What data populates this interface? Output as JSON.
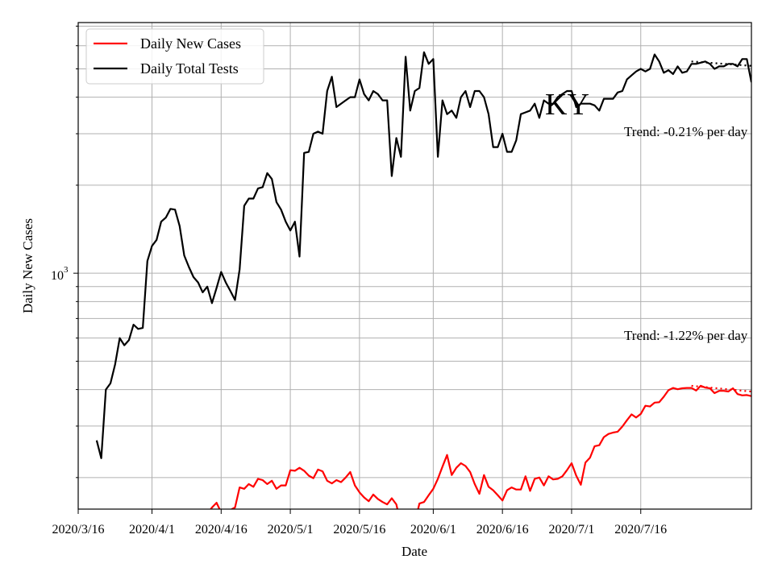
{
  "chart_data": {
    "type": "line",
    "title": "",
    "annotation_state": "KY",
    "xlabel": "Date",
    "ylabel": "Daily New Cases",
    "x_ticks": [
      {
        "date": "2020-03-16",
        "label": "2020/3/16"
      },
      {
        "date": "2020-04-01",
        "label": "2020/4/1"
      },
      {
        "date": "2020-04-16",
        "label": "2020/4/16"
      },
      {
        "date": "2020-05-01",
        "label": "2020/5/1"
      },
      {
        "date": "2020-05-16",
        "label": "2020/5/16"
      },
      {
        "date": "2020-06-01",
        "label": "2020/6/1"
      },
      {
        "date": "2020-06-16",
        "label": "2020/6/16"
      },
      {
        "date": "2020-07-01",
        "label": "2020/7/1"
      },
      {
        "date": "2020-07-16",
        "label": "2020/7/16"
      }
    ],
    "xlim": [
      "2020-03-16",
      "2020-08-09"
    ],
    "y_scale": "log",
    "ylim": [
      156,
      7200
    ],
    "y_ticks": [
      {
        "value": 1000,
        "label": "10",
        "exp": "3"
      }
    ],
    "grid": true,
    "legend": "top-left",
    "series": [
      {
        "name": "Daily New Cases",
        "color": "#ff0000",
        "start_date": "2020-04-10",
        "values": [
          138,
          140,
          143,
          150,
          158,
          164,
          152,
          150,
          155,
          158,
          185,
          183,
          190,
          186,
          198,
          196,
          190,
          195,
          183,
          188,
          188,
          212,
          211,
          216,
          211,
          203,
          199,
          213,
          210,
          195,
          191,
          196,
          193,
          200,
          209,
          188,
          178,
          171,
          166,
          175,
          169,
          165,
          162,
          170,
          162,
          138,
          138,
          152,
          140,
          163,
          165,
          174,
          183,
          198,
          218,
          239,
          204,
          216,
          224,
          219,
          209,
          190,
          176,
          204,
          186,
          181,
          174,
          167,
          181,
          185,
          182,
          182,
          202,
          180,
          198,
          200,
          188,
          202,
          197,
          198,
          202,
          212,
          224,
          203,
          189,
          225,
          234,
          256,
          258,
          275,
          282,
          285,
          287,
          299,
          314,
          329,
          321,
          330,
          352,
          350,
          361,
          362,
          378,
          398,
          405,
          401,
          404,
          405,
          405,
          397,
          412,
          406,
          404,
          389,
          396,
          396,
          394,
          404,
          386,
          382,
          383,
          380,
          390,
          393
        ],
        "trend": {
          "label": "Trend: -1.22% per day",
          "start_date": "2020-07-27",
          "start_value": 412,
          "end_value": 391,
          "color": "#ff0000"
        }
      },
      {
        "name": "Daily Total Tests",
        "color": "#000000",
        "start_date": "2020-03-20",
        "values": [
          268,
          233,
          400,
          420,
          488,
          600,
          567,
          590,
          667,
          645,
          650,
          1100,
          1240,
          1300,
          1500,
          1550,
          1660,
          1650,
          1450,
          1150,
          1050,
          970,
          930,
          860,
          900,
          790,
          890,
          1010,
          930,
          870,
          810,
          1030,
          1700,
          1800,
          1800,
          1950,
          1970,
          2200,
          2100,
          1750,
          1650,
          1500,
          1400,
          1500,
          1140,
          2580,
          2600,
          3000,
          3050,
          3000,
          4200,
          4700,
          3700,
          3800,
          3900,
          4000,
          4000,
          4600,
          4100,
          3900,
          4200,
          4100,
          3900,
          3900,
          2150,
          2900,
          2500,
          5500,
          3600,
          4200,
          4300,
          5700,
          5200,
          5400,
          2500,
          3900,
          3500,
          3600,
          3400,
          4000,
          4200,
          3700,
          4200,
          4200,
          4000,
          3500,
          2700,
          2700,
          3000,
          2600,
          2600,
          2850,
          3500,
          3550,
          3600,
          3800,
          3400,
          3900,
          3800,
          3800,
          4000,
          4100,
          4200,
          4200,
          3700,
          3800,
          3800,
          3800,
          3750,
          3600,
          3950,
          3950,
          3950,
          4150,
          4200,
          4600,
          4750,
          4900,
          5000,
          4900,
          5000,
          5600,
          5300,
          4850,
          4950,
          4800,
          5100,
          4850,
          4900,
          5200,
          5200,
          5250,
          5300,
          5200,
          5000,
          5100,
          5100,
          5200,
          5200,
          5100,
          5400,
          5400,
          4500
        ],
        "trend": {
          "label": "Trend: -0.21% per day",
          "start_date": "2020-07-27",
          "start_value": 5300,
          "end_value": 5120,
          "color": "#000000"
        }
      }
    ]
  }
}
